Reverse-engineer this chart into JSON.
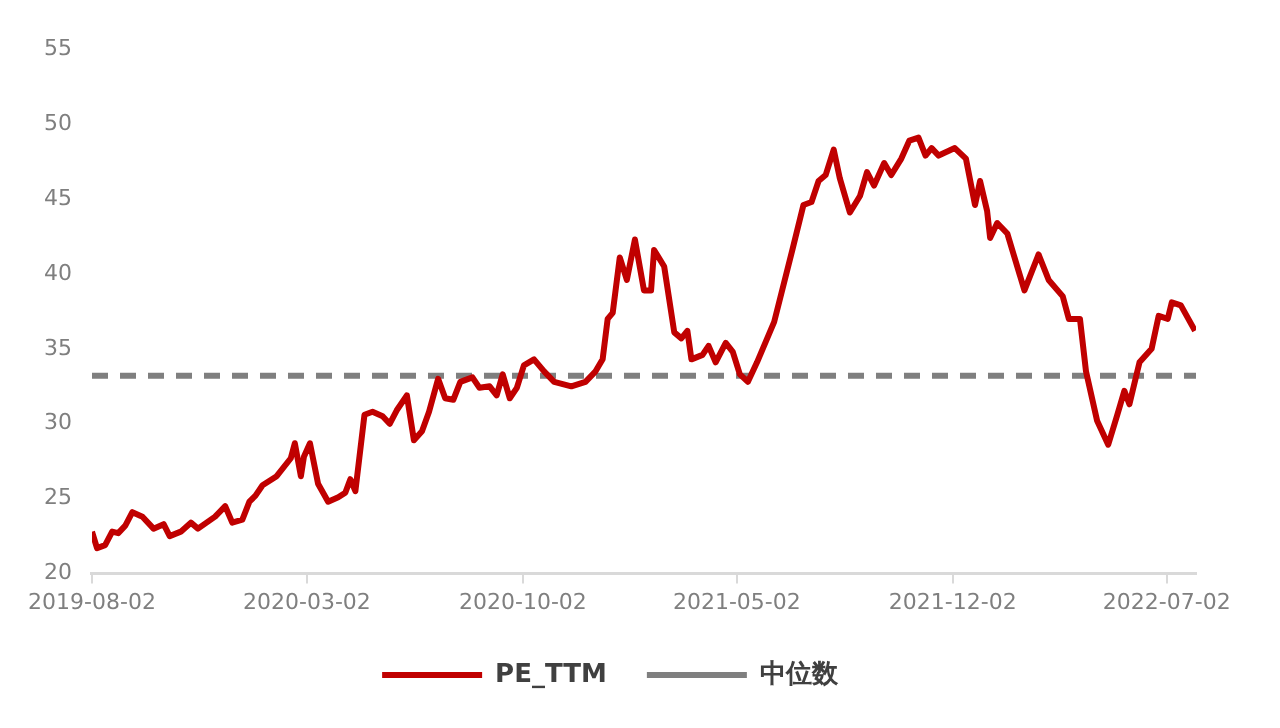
{
  "chart_data": {
    "type": "line",
    "xlim": [
      "2019-08-02",
      "2022-07-31"
    ],
    "xticks": [
      "2019-08-02",
      "2020-03-02",
      "2020-10-02",
      "2021-05-02",
      "2021-12-02",
      "2022-07-02"
    ],
    "ylim": [
      20,
      55
    ],
    "yticks": [
      20,
      25,
      30,
      35,
      40,
      45,
      50,
      55
    ],
    "grid": false,
    "legend": "bottom",
    "marker": "none",
    "series": [
      {
        "name": "PE_TTM",
        "color": "#c00000",
        "line_style": "solid",
        "x": [
          "2019-08-02",
          "2019-08-07",
          "2019-08-15",
          "2019-08-22",
          "2019-08-28",
          "2019-09-04",
          "2019-09-11",
          "2019-09-21",
          "2019-10-02",
          "2019-10-12",
          "2019-10-18",
          "2019-10-29",
          "2019-11-08",
          "2019-11-15",
          "2019-12-02",
          "2019-12-12",
          "2019-12-19",
          "2019-12-29",
          "2020-01-05",
          "2020-01-11",
          "2020-01-18",
          "2020-02-01",
          "2020-02-15",
          "2020-02-19",
          "2020-02-25",
          "2020-02-28",
          "2020-03-05",
          "2020-03-13",
          "2020-03-23",
          "2020-04-02",
          "2020-04-09",
          "2020-04-14",
          "2020-04-19",
          "2020-04-28",
          "2020-05-06",
          "2020-05-16",
          "2020-05-23",
          "2020-05-30",
          "2020-06-09",
          "2020-06-16",
          "2020-06-24",
          "2020-07-01",
          "2020-07-10",
          "2020-07-17",
          "2020-07-25",
          "2020-08-01",
          "2020-08-13",
          "2020-08-20",
          "2020-08-30",
          "2020-09-06",
          "2020-09-12",
          "2020-09-19",
          "2020-09-26",
          "2020-10-03",
          "2020-10-13",
          "2020-10-23",
          "2020-11-02",
          "2020-11-19",
          "2020-12-03",
          "2020-12-13",
          "2020-12-20",
          "2020-12-25",
          "2020-12-30",
          "2021-01-06",
          "2021-01-13",
          "2021-01-21",
          "2021-01-30",
          "2021-02-06",
          "2021-02-09",
          "2021-02-19",
          "2021-03-01",
          "2021-03-08",
          "2021-03-14",
          "2021-03-18",
          "2021-03-29",
          "2021-04-04",
          "2021-04-11",
          "2021-04-21",
          "2021-04-28",
          "2021-05-05",
          "2021-05-13",
          "2021-05-22",
          "2021-06-08",
          "2021-06-26",
          "2021-07-07",
          "2021-07-15",
          "2021-07-22",
          "2021-07-29",
          "2021-08-06",
          "2021-08-12",
          "2021-08-22",
          "2021-09-01",
          "2021-09-08",
          "2021-09-15",
          "2021-09-25",
          "2021-10-02",
          "2021-10-12",
          "2021-10-20",
          "2021-10-29",
          "2021-11-05",
          "2021-11-11",
          "2021-11-18",
          "2021-12-04",
          "2021-12-15",
          "2021-12-24",
          "2021-12-29",
          "2022-01-05",
          "2022-01-08",
          "2022-01-15",
          "2022-01-25",
          "2022-02-11",
          "2022-02-25",
          "2022-03-07",
          "2022-03-21",
          "2022-03-27",
          "2022-04-07",
          "2022-04-13",
          "2022-04-24",
          "2022-05-05",
          "2022-05-14",
          "2022-05-21",
          "2022-05-26",
          "2022-06-05",
          "2022-06-17",
          "2022-06-24",
          "2022-07-03",
          "2022-07-07",
          "2022-07-16",
          "2022-07-30"
        ],
        "values": [
          22.8,
          21.7,
          21.9,
          22.8,
          22.7,
          23.2,
          24.1,
          23.8,
          23.0,
          23.3,
          22.5,
          22.8,
          23.4,
          23.0,
          23.8,
          24.5,
          23.4,
          23.6,
          24.8,
          25.2,
          25.9,
          26.5,
          27.7,
          28.7,
          26.5,
          27.8,
          28.7,
          26.0,
          24.8,
          25.1,
          25.4,
          26.3,
          25.5,
          30.6,
          30.8,
          30.5,
          30.0,
          30.9,
          31.9,
          28.9,
          29.5,
          30.8,
          33.0,
          31.7,
          31.6,
          32.8,
          33.1,
          32.4,
          32.5,
          31.9,
          33.3,
          31.7,
          32.4,
          33.9,
          34.3,
          33.5,
          32.8,
          32.5,
          32.8,
          33.5,
          34.3,
          37.0,
          37.4,
          41.1,
          39.6,
          42.3,
          38.9,
          38.9,
          41.6,
          40.5,
          36.1,
          35.7,
          36.2,
          34.3,
          34.6,
          35.2,
          34.1,
          35.4,
          34.8,
          33.3,
          32.8,
          34.1,
          36.8,
          41.6,
          44.6,
          44.8,
          46.2,
          46.6,
          48.3,
          46.4,
          44.1,
          45.2,
          46.8,
          45.9,
          47.4,
          46.6,
          47.7,
          48.9,
          49.1,
          47.9,
          48.4,
          47.9,
          48.4,
          47.7,
          44.6,
          46.2,
          44.2,
          42.4,
          43.4,
          42.7,
          38.9,
          41.3,
          39.6,
          38.5,
          37.0,
          37.0,
          33.5,
          30.2,
          28.6,
          30.6,
          32.2,
          31.3,
          34.1,
          35.0,
          37.2,
          37.0,
          38.1,
          37.9,
          36.2
        ]
      },
      {
        "name": "中位数",
        "color": "#7f7f7f",
        "line_style": "dashed",
        "x": [
          "2019-08-02",
          "2022-07-31"
        ],
        "values": [
          33.2,
          33.2
        ]
      }
    ]
  }
}
